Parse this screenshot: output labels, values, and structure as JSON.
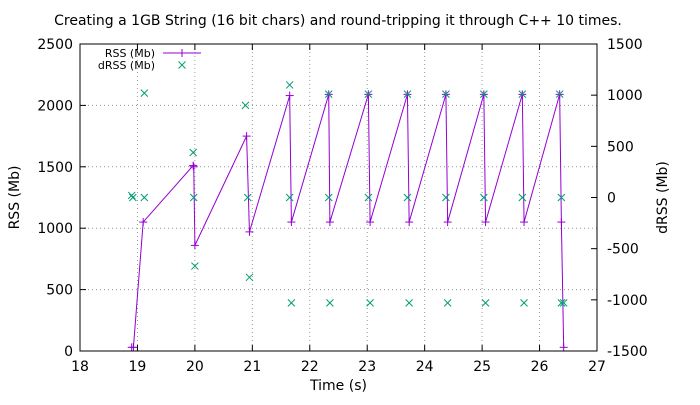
{
  "chart_data": {
    "type": "line",
    "title": "Creating a 1GB String (16 bit chars) and round-tripping it through C++ 10 times.",
    "xlabel": "Time (s)",
    "ylabel": "RSS (Mb)",
    "y2label": "dRSS (Mb)",
    "xlim": [
      18,
      27
    ],
    "ylim": [
      0,
      2500
    ],
    "y2lim": [
      -1500,
      1500
    ],
    "xticks": [
      18,
      19,
      20,
      21,
      22,
      23,
      24,
      25,
      26,
      27
    ],
    "yticks": [
      0,
      500,
      1000,
      1500,
      2000,
      2500
    ],
    "y2ticks": [
      -1500,
      -1000,
      -500,
      0,
      500,
      1000,
      1500
    ],
    "grid": true,
    "legend_position": "top-left",
    "series": [
      {
        "name": "RSS (Mb)",
        "axis": "left",
        "style": "linespoints",
        "marker": "plus",
        "color": "#9400d3",
        "points": [
          [
            18.9,
            30
          ],
          [
            18.93,
            30
          ],
          [
            19.1,
            1050
          ],
          [
            19.97,
            1510
          ],
          [
            19.98,
            1500
          ],
          [
            20.0,
            860
          ],
          [
            20.9,
            1750
          ],
          [
            20.95,
            970
          ],
          [
            21.65,
            2080
          ],
          [
            21.68,
            1050
          ],
          [
            22.33,
            2090
          ],
          [
            22.35,
            1050
          ],
          [
            23.02,
            2090
          ],
          [
            23.05,
            1050
          ],
          [
            23.7,
            2090
          ],
          [
            23.73,
            1050
          ],
          [
            24.37,
            2090
          ],
          [
            24.4,
            1050
          ],
          [
            25.03,
            2090
          ],
          [
            25.06,
            1050
          ],
          [
            25.7,
            2090
          ],
          [
            25.73,
            1050
          ],
          [
            26.35,
            2090
          ],
          [
            26.38,
            1050
          ],
          [
            26.42,
            30
          ]
        ]
      },
      {
        "name": "dRSS (Mb)",
        "axis": "right",
        "style": "points",
        "marker": "cross",
        "color": "#009e73",
        "points": [
          [
            18.9,
            20
          ],
          [
            18.92,
            0
          ],
          [
            19.12,
            1020
          ],
          [
            19.12,
            0
          ],
          [
            19.97,
            440
          ],
          [
            19.98,
            0
          ],
          [
            20.0,
            -670
          ],
          [
            20.88,
            900
          ],
          [
            20.92,
            0
          ],
          [
            20.95,
            -780
          ],
          [
            21.65,
            1100
          ],
          [
            21.65,
            0
          ],
          [
            21.68,
            -1030
          ],
          [
            22.33,
            1010
          ],
          [
            22.33,
            0
          ],
          [
            22.35,
            -1030
          ],
          [
            23.02,
            1010
          ],
          [
            23.02,
            0
          ],
          [
            23.05,
            -1030
          ],
          [
            23.7,
            1010
          ],
          [
            23.7,
            0
          ],
          [
            23.73,
            -1030
          ],
          [
            24.37,
            1010
          ],
          [
            24.37,
            0
          ],
          [
            24.4,
            -1030
          ],
          [
            25.03,
            1010
          ],
          [
            25.03,
            0
          ],
          [
            25.06,
            -1030
          ],
          [
            25.7,
            1010
          ],
          [
            25.7,
            0
          ],
          [
            25.73,
            -1030
          ],
          [
            26.35,
            1010
          ],
          [
            26.38,
            0
          ],
          [
            26.38,
            -1030
          ],
          [
            26.42,
            -1030
          ]
        ]
      }
    ]
  }
}
